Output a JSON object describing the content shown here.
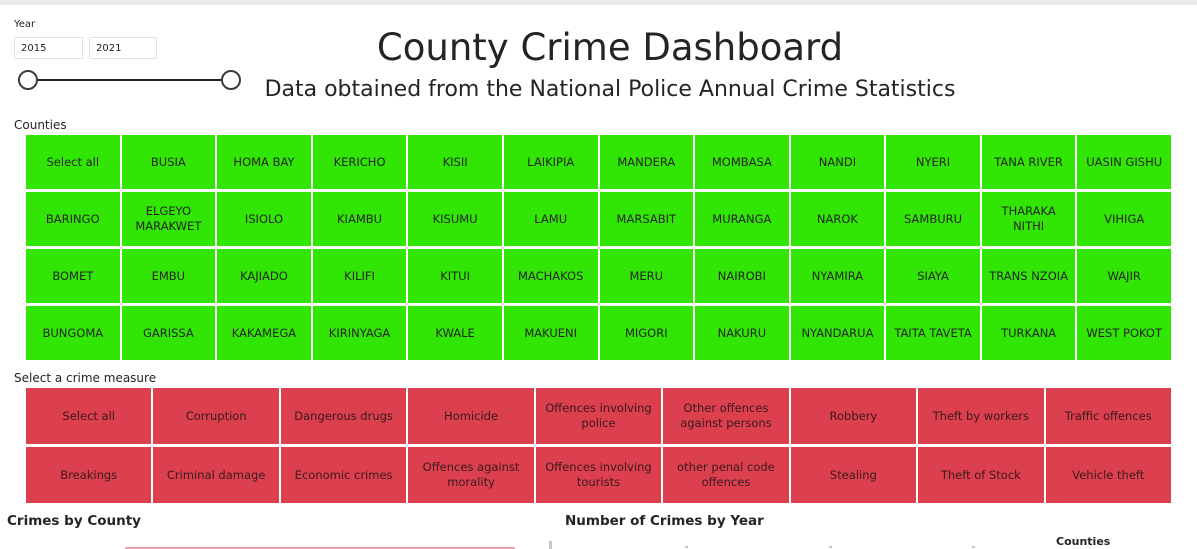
{
  "filters": {
    "year_label": "Year",
    "year_start": "2015",
    "year_end": "2021",
    "slider_start_fraction": 0,
    "slider_end_fraction": 1
  },
  "header": {
    "title": "County Crime Dashboard",
    "subtitle": "Data obtained from the National Police Annual Crime Statistics"
  },
  "counties": {
    "label": "Counties",
    "color": "#31e605",
    "items": [
      "Select all",
      "BUSIA",
      "HOMA BAY",
      "KERICHO",
      "KISII",
      "LAIKIPIA",
      "MANDERA",
      "MOMBASA",
      "NANDI",
      "NYERI",
      "TANA RIVER",
      "UASIN GISHU",
      "BARINGO",
      "ELGEYO MARAKWET",
      "ISIOLO",
      "KIAMBU",
      "KISUMU",
      "LAMU",
      "MARSABIT",
      "MURANGA",
      "NAROK",
      "SAMBURU",
      "THARAKA NITHI",
      "VIHIGA",
      "BOMET",
      "EMBU",
      "KAJIADO",
      "KILIFI",
      "KITUI",
      "MACHAKOS",
      "MERU",
      "NAIROBI",
      "NYAMIRA",
      "SIAYA",
      "TRANS NZOIA",
      "WAJIR",
      "BUNGOMA",
      "GARISSA",
      "KAKAMEGA",
      "KIRINYAGA",
      "KWALE",
      "MAKUENI",
      "MIGORI",
      "NAKURU",
      "NYANDARUA",
      "TAITA TAVETA",
      "TURKANA",
      "WEST POKOT"
    ]
  },
  "crime_measures": {
    "label": "Select a crime measure",
    "color": "#dc3f4d",
    "items": [
      "Select all",
      "Corruption",
      "Dangerous drugs",
      "Homicide",
      "Offences involving police",
      "Other offences against persons",
      "Robbery",
      "Theft by workers",
      "Traffic offences",
      "Breakings",
      "Criminal damage",
      "Economic crimes",
      "Offences against morality",
      "Offences involving tourists",
      "other penal code offences",
      "Stealing",
      "Theft of Stock",
      "Vehicle theft"
    ]
  },
  "panels": {
    "crimes_by_county": "Crimes by County",
    "crimes_by_year": "Number of Crimes by Year",
    "legend_title": "Counties"
  }
}
